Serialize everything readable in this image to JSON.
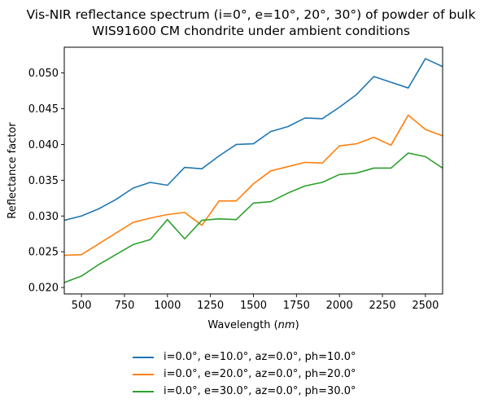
{
  "chart_data": {
    "type": "line",
    "title": [
      "Vis-NIR reflectance spectrum (i=0°, e=10°, 20°, 30°) of powder of bulk",
      "WIS91600 CM chondrite under ambient conditions"
    ],
    "xlabel": "Wavelength",
    "xlabel_unit": "nm",
    "ylabel": "Reflectance factor",
    "xlim": [
      400,
      2600
    ],
    "ylim": [
      0.0191,
      0.0536
    ],
    "xticks": [
      500,
      750,
      1000,
      1250,
      1500,
      1750,
      2000,
      2250,
      2500
    ],
    "yticks": [
      0.02,
      0.025,
      0.03,
      0.035,
      0.04,
      0.045,
      0.05
    ],
    "grid": false,
    "legend_position": "below",
    "x": [
      400,
      500,
      600,
      700,
      800,
      900,
      1000,
      1100,
      1200,
      1300,
      1400,
      1500,
      1600,
      1700,
      1800,
      1900,
      2000,
      2100,
      2200,
      2300,
      2400,
      2500,
      2600
    ],
    "series": [
      {
        "name": "i=0.0°, e=10.0°, az=0.0°, ph=10.0°",
        "color": "#1f77b4",
        "values": [
          0.0294,
          0.03,
          0.031,
          0.0323,
          0.0339,
          0.0347,
          0.0343,
          0.0368,
          0.0366,
          0.0384,
          0.04,
          0.0401,
          0.0418,
          0.0425,
          0.0437,
          0.0436,
          0.0452,
          0.047,
          0.0495,
          0.0487,
          0.0479,
          0.052,
          0.0509
        ]
      },
      {
        "name": "i=0.0°, e=20.0°, az=0.0°, ph=20.0°",
        "color": "#ff7f0e",
        "values": [
          0.0245,
          0.0246,
          0.0261,
          0.0276,
          0.0291,
          0.0297,
          0.0302,
          0.0305,
          0.0287,
          0.0321,
          0.0321,
          0.0345,
          0.0363,
          0.0369,
          0.0375,
          0.0374,
          0.0398,
          0.0401,
          0.041,
          0.0399,
          0.0441,
          0.0421,
          0.0412
        ]
      },
      {
        "name": "i=0.0°, e=30.0°, az=0.0°, ph=30.0°",
        "color": "#2ca02c",
        "values": [
          0.0207,
          0.0216,
          0.0232,
          0.0246,
          0.026,
          0.0267,
          0.0295,
          0.0268,
          0.0294,
          0.0296,
          0.0295,
          0.0318,
          0.032,
          0.0332,
          0.0342,
          0.0347,
          0.0358,
          0.036,
          0.0367,
          0.0367,
          0.0388,
          0.0383,
          0.0367
        ]
      }
    ]
  }
}
